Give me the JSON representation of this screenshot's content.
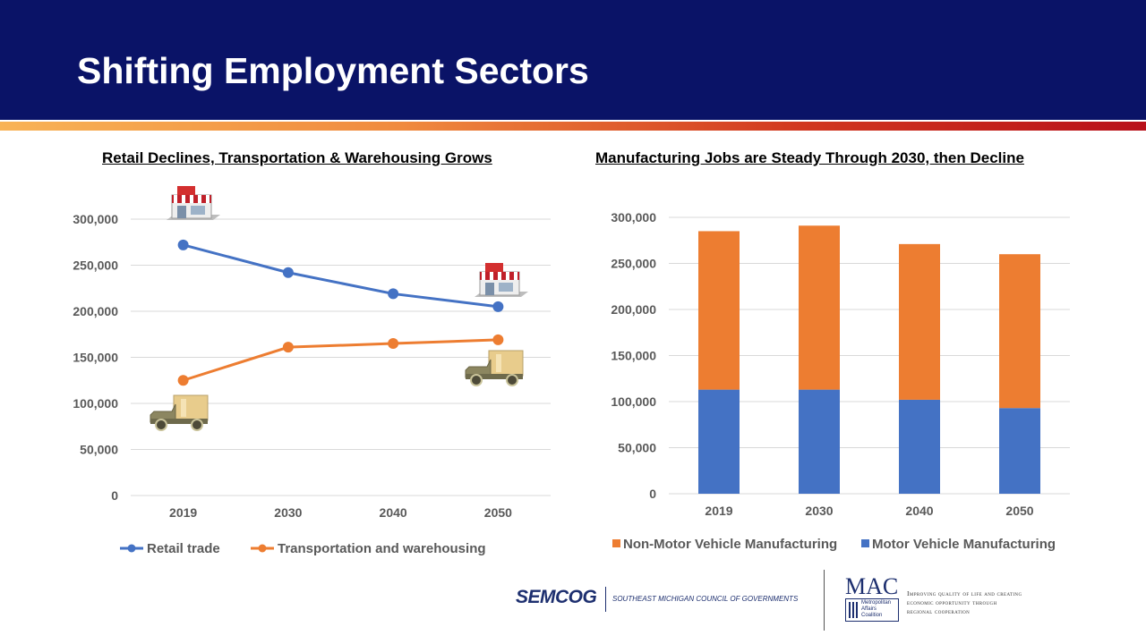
{
  "slide": {
    "title": "Shifting Employment Sectors"
  },
  "chart_data": [
    {
      "type": "line",
      "title": "Retail Declines, Transportation & Warehousing Grows",
      "categories": [
        "2019",
        "2030",
        "2040",
        "2050"
      ],
      "series": [
        {
          "name": "Retail trade",
          "color": "#4472c4",
          "values": [
            272000,
            242000,
            219000,
            205000
          ]
        },
        {
          "name": "Transportation and warehousing",
          "color": "#ed7d31",
          "values": [
            125000,
            161000,
            165000,
            169000
          ]
        }
      ],
      "yticks": [
        "0",
        "50,000",
        "100,000",
        "150,000",
        "200,000",
        "250,000",
        "300,000"
      ],
      "ylim": [
        0,
        300000
      ],
      "grid": true,
      "legend": "bottom",
      "icons": [
        "store-icon",
        "store-icon",
        "truck-icon",
        "truck-icon"
      ]
    },
    {
      "type": "bar",
      "stacked": true,
      "title": "Manufacturing Jobs are Steady Through 2030, then Decline",
      "categories": [
        "2019",
        "2030",
        "2040",
        "2050"
      ],
      "series": [
        {
          "name": "Motor Vehicle Manufacturing",
          "color": "#4472c4",
          "values": [
            113000,
            113000,
            102000,
            93000
          ]
        },
        {
          "name": "Non-Motor Vehicle Manufacturing",
          "color": "#ed7d31",
          "values": [
            172000,
            178000,
            169000,
            167000
          ]
        }
      ],
      "legend_order": [
        "Non-Motor Vehicle Manufacturing",
        "Motor Vehicle Manufacturing"
      ],
      "yticks": [
        "0",
        "50,000",
        "100,000",
        "150,000",
        "200,000",
        "250,000",
        "300,000"
      ],
      "ylim": [
        0,
        300000
      ],
      "grid": true,
      "legend": "bottom"
    }
  ],
  "footer": {
    "semcog_logo": "SEMCOG",
    "semcog_name": "SOUTHEAST MICHIGAN COUNCIL OF GOVERNMENTS",
    "mac_logo": "MAC",
    "mac_name": [
      "Metropolitan",
      "Affairs",
      "Coalition"
    ],
    "mac_tagline": [
      "Improving quality of life and creating",
      "economic opportunity through",
      "regional cooperation"
    ]
  }
}
